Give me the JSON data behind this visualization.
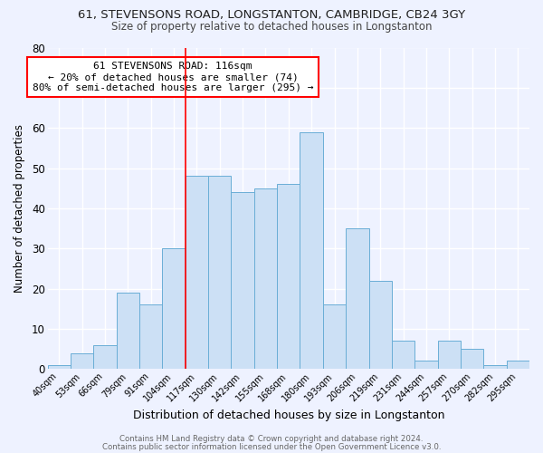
{
  "title_line1": "61, STEVENSONS ROAD, LONGSTANTON, CAMBRIDGE, CB24 3GY",
  "title_line2": "Size of property relative to detached houses in Longstanton",
  "xlabel": "Distribution of detached houses by size in Longstanton",
  "ylabel": "Number of detached properties",
  "bin_labels": [
    "40sqm",
    "53sqm",
    "66sqm",
    "79sqm",
    "91sqm",
    "104sqm",
    "117sqm",
    "130sqm",
    "142sqm",
    "155sqm",
    "168sqm",
    "180sqm",
    "193sqm",
    "206sqm",
    "219sqm",
    "231sqm",
    "244sqm",
    "257sqm",
    "270sqm",
    "282sqm",
    "295sqm"
  ],
  "bar_heights": [
    1,
    4,
    6,
    19,
    16,
    30,
    48,
    48,
    44,
    45,
    46,
    59,
    16,
    35,
    22,
    7,
    2,
    7,
    5,
    1,
    2
  ],
  "bar_color": "#cce0f5",
  "bar_edge_color": "#6aaed6",
  "red_line_index": 6,
  "annotation_line1": "61 STEVENSONS ROAD: 116sqm",
  "annotation_line2": "← 20% of detached houses are smaller (74)",
  "annotation_line3": "80% of semi-detached houses are larger (295) →",
  "annotation_box_color": "white",
  "annotation_box_edge": "red",
  "footer_line1": "Contains HM Land Registry data © Crown copyright and database right 2024.",
  "footer_line2": "Contains public sector information licensed under the Open Government Licence v3.0.",
  "background_color": "#eef2ff",
  "plot_bg_color": "#eef2ff",
  "grid_color": "white",
  "ylim": [
    0,
    80
  ],
  "yticks": [
    0,
    10,
    20,
    30,
    40,
    50,
    60,
    70,
    80
  ]
}
